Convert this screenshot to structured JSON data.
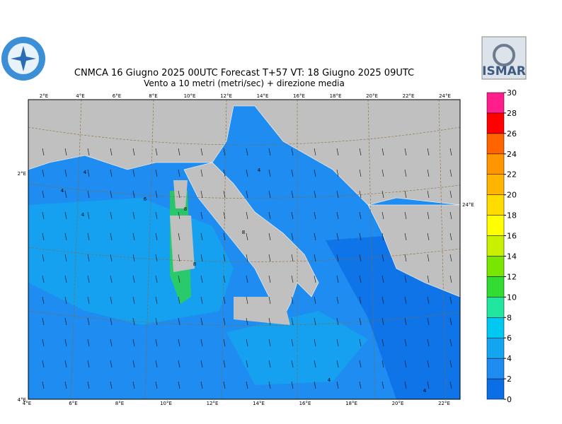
{
  "header": {
    "title": "CNMCA 16  Giugno  2025 00UTC Forecast T+57 VT: 18  Giugno  2025 09UTC",
    "subtitle": "Vento a 10 metri (metri/sec) + direzione media"
  },
  "logo_text": "ISMAR",
  "top_lon_labels": [
    "2°E",
    "4°E",
    "6°E",
    "8°E",
    "10°E",
    "12°E",
    "14°E",
    "16°E",
    "18°E",
    "20°E",
    "22°E",
    "24°E"
  ],
  "bottom_lon_labels": [
    "4°E",
    "6°E",
    "8°E",
    "10°E",
    "12°E",
    "14°E",
    "16°E",
    "18°E",
    "20°E",
    "22°E"
  ],
  "left_lon_labels": [
    "2°E",
    "4°E"
  ],
  "right_lon_labels": [
    "24°E"
  ],
  "contour_labels": [
    "4",
    "4",
    "4",
    "4",
    "6",
    "8",
    "8",
    "8",
    "4",
    "4"
  ],
  "colorbar": {
    "ticks": [
      0,
      2,
      4,
      6,
      8,
      10,
      12,
      14,
      16,
      18,
      20,
      22,
      24,
      26,
      28,
      30
    ],
    "colors": [
      "#0a6ee6",
      "#1e8cf0",
      "#14a5f0",
      "#00c8f0",
      "#20e6a0",
      "#32dc32",
      "#78e600",
      "#c8f000",
      "#ffff00",
      "#ffdc00",
      "#ffb400",
      "#ff9600",
      "#ff6400",
      "#ff0000",
      "#ff1e8c"
    ]
  }
}
